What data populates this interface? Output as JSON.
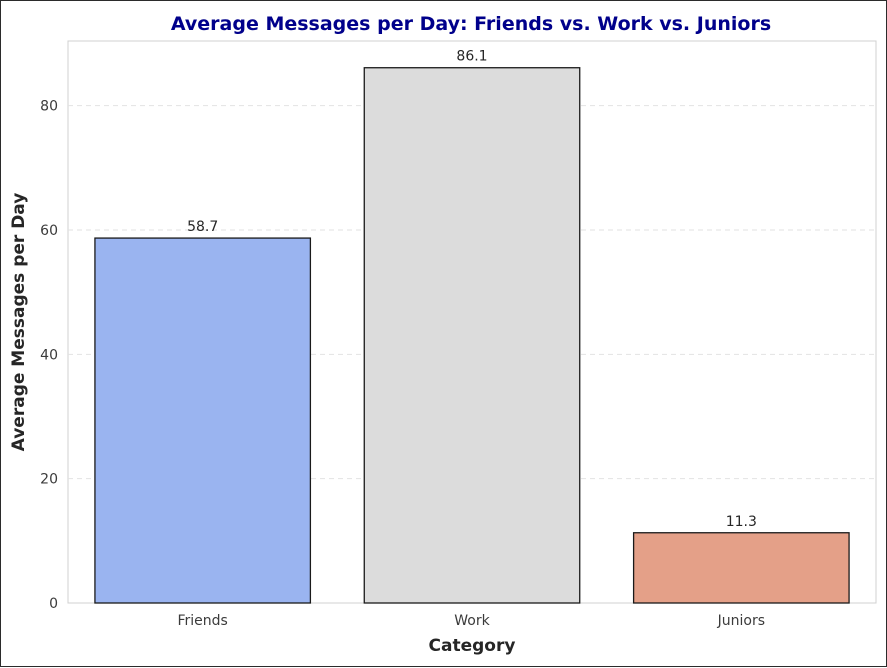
{
  "chart_data": {
    "type": "bar",
    "title": "Average Messages per Day: Friends vs. Work vs. Juniors",
    "xlabel": "Category",
    "ylabel": "Average Messages per Day",
    "categories": [
      "Friends",
      "Work",
      "Juniors"
    ],
    "values": [
      58.7,
      86.1,
      11.3
    ],
    "data_labels": [
      "58.7",
      "86.1",
      "11.3"
    ],
    "colors": [
      "#9ab4f0",
      "#dcdcdc",
      "#e4a088"
    ],
    "bar_edge_color": "#1a1a1a",
    "ylim": [
      0,
      90.4
    ],
    "yticks": [
      0,
      20,
      40,
      60,
      80
    ],
    "grid": "y-dashed",
    "title_color": "#00008b"
  }
}
